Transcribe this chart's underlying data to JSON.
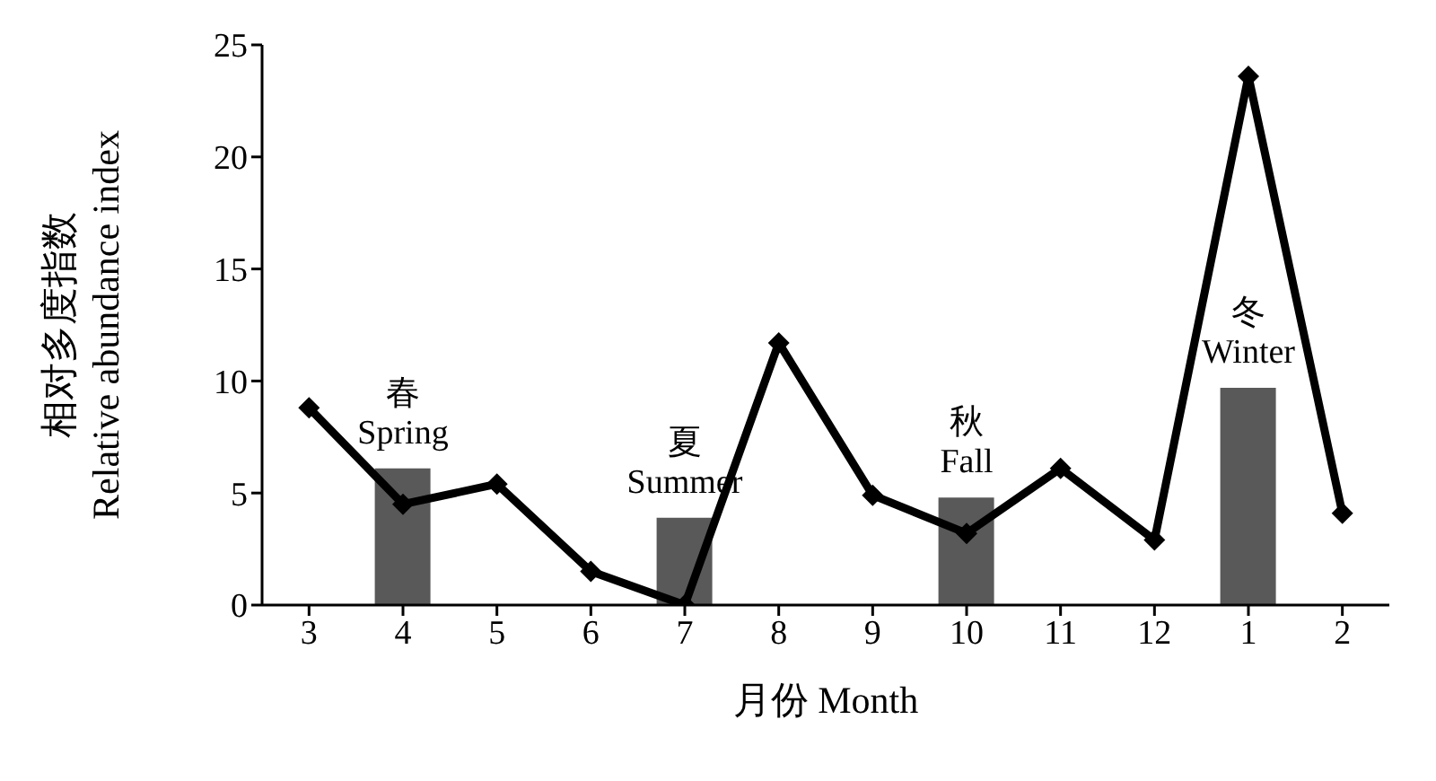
{
  "chart_data": {
    "type": "bar",
    "xlabel": "月份 Month",
    "ylabel": "相对多度指数\nRelative abundance index",
    "categories": [
      "3",
      "4",
      "5",
      "6",
      "7",
      "8",
      "9",
      "10",
      "11",
      "12",
      "1",
      "2"
    ],
    "series": [
      {
        "color": "#595959",
        "values": [
          null,
          6.1,
          null,
          null,
          3.9,
          null,
          null,
          4.8,
          null,
          null,
          9.7,
          null
        ]
      },
      {
        "type": "line",
        "color": "#000000",
        "values": [
          8.8,
          4.5,
          5.4,
          1.5,
          0,
          11.7,
          4.9,
          3.2,
          6.1,
          2.9,
          23.6,
          4.1
        ]
      }
    ],
    "annotations": [
      "春\nSpring",
      "夏\nSummer",
      "秋\nFall",
      "冬\nWinter"
    ],
    "ylim": [
      0,
      25
    ],
    "yticks": [
      0,
      5,
      10,
      15,
      20,
      25
    ],
    "grid": false,
    "legend": false,
    "marker": "diamond",
    "line_style": "solid"
  }
}
